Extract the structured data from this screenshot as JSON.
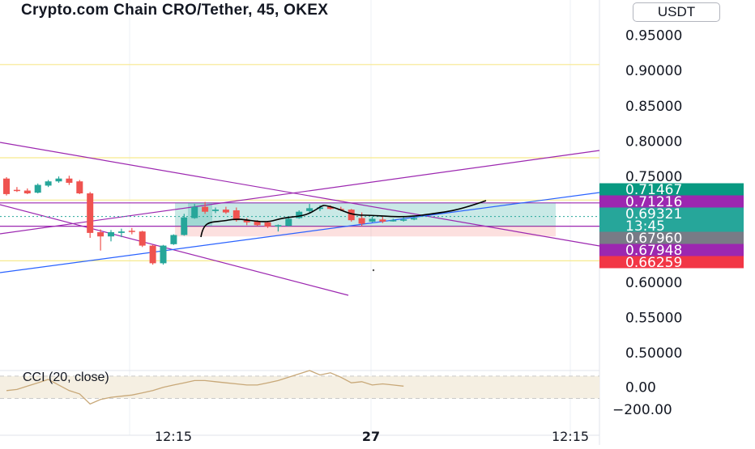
{
  "header": {
    "title": "Crypto.com Chain CRO/Tether, 45, OKEX",
    "currency_button": "USDT"
  },
  "colors": {
    "bull": "#26a69a",
    "bear": "#ef5350",
    "purple": "#9c27b0",
    "blue": "#2962ff",
    "yellow": "#f7e98e",
    "cci_line": "#c8a878"
  },
  "chart_data": {
    "type": "candlestick",
    "symbol": "CRO/Tether",
    "interval": "45",
    "exchange": "OKEX",
    "y_axis": {
      "ticks": [
        "0.95000",
        "0.90000",
        "0.85000",
        "0.80000",
        "0.75000",
        "0.60000",
        "0.55000",
        "0.50000"
      ],
      "range": [
        0.475,
        1.0
      ]
    },
    "x_axis": {
      "ticks": [
        "12:15",
        "27",
        "12:15"
      ]
    },
    "price_tags": [
      {
        "value": "0.71467",
        "color": "#089981"
      },
      {
        "value": "0.71216",
        "color": "#9c27b0"
      },
      {
        "value": "0.69321",
        "extra": "13:45",
        "color": "#26a69a"
      },
      {
        "value": "0.67960",
        "color": "#787b86"
      },
      {
        "value": "0.67948",
        "color": "#9c27b0"
      },
      {
        "value": "0.66259",
        "color": "#f23645"
      }
    ],
    "candles": [
      {
        "o": 0.747,
        "h": 0.749,
        "l": 0.723,
        "c": 0.725
      },
      {
        "o": 0.731,
        "h": 0.735,
        "l": 0.728,
        "c": 0.73
      },
      {
        "o": 0.73,
        "h": 0.733,
        "l": 0.725,
        "c": 0.726
      },
      {
        "o": 0.727,
        "h": 0.74,
        "l": 0.726,
        "c": 0.738
      },
      {
        "o": 0.737,
        "h": 0.745,
        "l": 0.735,
        "c": 0.743
      },
      {
        "o": 0.743,
        "h": 0.75,
        "l": 0.741,
        "c": 0.747
      },
      {
        "o": 0.747,
        "h": 0.751,
        "l": 0.738,
        "c": 0.741
      },
      {
        "o": 0.743,
        "h": 0.745,
        "l": 0.725,
        "c": 0.726
      },
      {
        "o": 0.726,
        "h": 0.728,
        "l": 0.663,
        "c": 0.67
      },
      {
        "o": 0.671,
        "h": 0.675,
        "l": 0.645,
        "c": 0.665
      },
      {
        "o": 0.665,
        "h": 0.674,
        "l": 0.658,
        "c": 0.671
      },
      {
        "o": 0.67,
        "h": 0.676,
        "l": 0.664,
        "c": 0.672
      },
      {
        "o": 0.673,
        "h": 0.677,
        "l": 0.668,
        "c": 0.672
      },
      {
        "o": 0.672,
        "h": 0.673,
        "l": 0.65,
        "c": 0.652
      },
      {
        "o": 0.652,
        "h": 0.653,
        "l": 0.625,
        "c": 0.627
      },
      {
        "o": 0.627,
        "h": 0.653,
        "l": 0.625,
        "c": 0.652
      },
      {
        "o": 0.654,
        "h": 0.668,
        "l": 0.653,
        "c": 0.667
      },
      {
        "o": 0.667,
        "h": 0.697,
        "l": 0.666,
        "c": 0.692
      },
      {
        "o": 0.691,
        "h": 0.711,
        "l": 0.69,
        "c": 0.707
      },
      {
        "o": 0.707,
        "h": 0.714,
        "l": 0.697,
        "c": 0.7
      },
      {
        "o": 0.701,
        "h": 0.706,
        "l": 0.698,
        "c": 0.703
      },
      {
        "o": 0.703,
        "h": 0.707,
        "l": 0.697,
        "c": 0.699
      },
      {
        "o": 0.702,
        "h": 0.706,
        "l": 0.686,
        "c": 0.688
      },
      {
        "o": 0.688,
        "h": 0.691,
        "l": 0.681,
        "c": 0.685
      },
      {
        "o": 0.687,
        "h": 0.688,
        "l": 0.68,
        "c": 0.681
      },
      {
        "o": 0.685,
        "h": 0.687,
        "l": 0.677,
        "c": 0.679
      },
      {
        "o": 0.679,
        "h": 0.682,
        "l": 0.672,
        "c": 0.681
      },
      {
        "o": 0.68,
        "h": 0.692,
        "l": 0.679,
        "c": 0.69
      },
      {
        "o": 0.691,
        "h": 0.702,
        "l": 0.69,
        "c": 0.7
      },
      {
        "o": 0.701,
        "h": 0.711,
        "l": 0.699,
        "c": 0.705
      },
      {
        "o": 0.704,
        "h": 0.709,
        "l": 0.701,
        "c": 0.706
      },
      {
        "o": 0.707,
        "h": 0.709,
        "l": 0.703,
        "c": 0.704
      },
      {
        "o": 0.704,
        "h": 0.707,
        "l": 0.701,
        "c": 0.703
      },
      {
        "o": 0.703,
        "h": 0.704,
        "l": 0.686,
        "c": 0.688
      },
      {
        "o": 0.691,
        "h": 0.699,
        "l": 0.68,
        "c": 0.683
      },
      {
        "o": 0.686,
        "h": 0.693,
        "l": 0.685,
        "c": 0.69
      },
      {
        "o": 0.689,
        "h": 0.693,
        "l": 0.684,
        "c": 0.686
      },
      {
        "o": 0.687,
        "h": 0.69,
        "l": 0.686,
        "c": 0.688
      },
      {
        "o": 0.688,
        "h": 0.693,
        "l": 0.686,
        "c": 0.689
      },
      {
        "o": 0.689,
        "h": 0.693,
        "l": 0.688,
        "c": 0.691
      }
    ],
    "horizontal_levels": [
      0.9085,
      0.7765,
      0.7165,
      0.7125,
      0.6795,
      0.6305
    ],
    "indicator": {
      "name": "CCI (20, close)",
      "ticks": [
        "0.00",
        "−200.00"
      ],
      "range": [
        -300,
        150
      ],
      "values": [
        -30,
        -20,
        10,
        40,
        70,
        20,
        -30,
        -60,
        -150,
        -110,
        -90,
        -80,
        -70,
        -50,
        -30,
        0,
        20,
        40,
        60,
        60,
        50,
        40,
        30,
        20,
        20,
        40,
        60,
        90,
        120,
        150,
        110,
        130,
        90,
        40,
        50,
        20,
        30,
        20,
        10
      ]
    }
  }
}
